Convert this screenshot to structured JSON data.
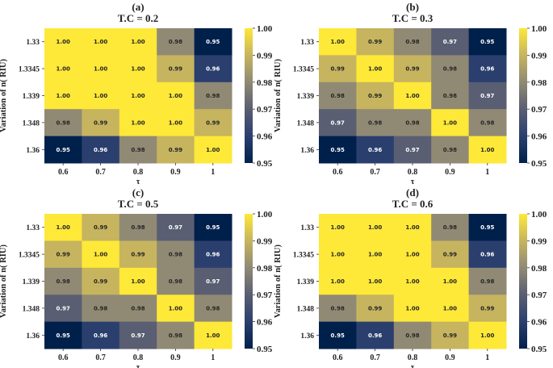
{
  "colormap": {
    "name": "cividis",
    "low": "#00204c",
    "mid": "#7c7b78",
    "high": "#fee838"
  },
  "axis_labels": {
    "x": "τ",
    "y": "Variation of n( RIU)"
  },
  "chart_data": [
    {
      "type": "heatmap",
      "panel": "(a)",
      "title": "T.C = 0.2",
      "xlabel": "τ",
      "ylabel": "Variation of n( RIU)",
      "x": [
        "0.6",
        "0.7",
        "0.8",
        "0.9",
        "1"
      ],
      "y": [
        "1.33",
        "1.3345",
        "1.339",
        "1.348",
        "1.36"
      ],
      "values": [
        [
          1.0,
          1.0,
          1.0,
          0.98,
          0.95
        ],
        [
          1.0,
          1.0,
          1.0,
          0.99,
          0.96
        ],
        [
          1.0,
          1.0,
          1.0,
          1.0,
          0.98
        ],
        [
          0.98,
          0.99,
          1.0,
          1.0,
          0.99
        ],
        [
          0.95,
          0.96,
          0.98,
          0.99,
          1.0
        ]
      ],
      "colorbar": {
        "range": [
          0.95,
          1.0
        ],
        "ticks": [
          "0.95",
          "0.96",
          "0.97",
          "0.98",
          "0.99",
          "1.00"
        ]
      }
    },
    {
      "type": "heatmap",
      "panel": "(b)",
      "title": "T.C = 0.3",
      "xlabel": "τ",
      "ylabel": "Variation of n( RIU)",
      "x": [
        "0.6",
        "0.7",
        "0.8",
        "0.9",
        "1"
      ],
      "y": [
        "1.33",
        "1.3345",
        "1.339",
        "1.348",
        "1.36"
      ],
      "values": [
        [
          1.0,
          0.99,
          0.98,
          0.97,
          0.95
        ],
        [
          0.99,
          1.0,
          0.99,
          0.98,
          0.96
        ],
        [
          0.98,
          0.99,
          1.0,
          0.98,
          0.97
        ],
        [
          0.97,
          0.98,
          0.98,
          1.0,
          0.98
        ],
        [
          0.95,
          0.96,
          0.97,
          0.98,
          1.0
        ]
      ],
      "colorbar": {
        "range": [
          0.95,
          1.0
        ],
        "ticks": [
          "0.95",
          "0.96",
          "0.97",
          "0.98",
          "0.99",
          "1.00"
        ]
      }
    },
    {
      "type": "heatmap",
      "panel": "(c)",
      "title": "T.C = 0.5",
      "xlabel": "τ",
      "ylabel": "Variation of n( RIU)",
      "x": [
        "0.6",
        "0.7",
        "0.8",
        "0.9",
        "1"
      ],
      "y": [
        "1.33",
        "1.3345",
        "1.339",
        "1.348",
        "1.36"
      ],
      "values": [
        [
          1.0,
          0.99,
          0.98,
          0.97,
          0.95
        ],
        [
          0.99,
          1.0,
          0.99,
          0.98,
          0.96
        ],
        [
          0.98,
          0.99,
          1.0,
          0.98,
          0.97
        ],
        [
          0.97,
          0.98,
          0.98,
          1.0,
          0.98
        ],
        [
          0.95,
          0.96,
          0.97,
          0.98,
          1.0
        ]
      ],
      "colorbar": {
        "range": [
          0.95,
          1.0
        ],
        "ticks": [
          "0.95",
          "0.96",
          "0.97",
          "0.98",
          "0.99",
          "1.00"
        ]
      }
    },
    {
      "type": "heatmap",
      "panel": "(d)",
      "title": "T.C = 0.6",
      "xlabel": "τ",
      "ylabel": "Variation of n( RIU)",
      "x": [
        "0.6",
        "0.7",
        "0.8",
        "0.9",
        "1"
      ],
      "y": [
        "1.33",
        "1.3345",
        "1.339",
        "1.348",
        "1.36"
      ],
      "values": [
        [
          1.0,
          1.0,
          1.0,
          0.98,
          0.95
        ],
        [
          1.0,
          1.0,
          1.0,
          0.99,
          0.96
        ],
        [
          1.0,
          1.0,
          1.0,
          1.0,
          0.98
        ],
        [
          0.98,
          0.99,
          1.0,
          1.0,
          0.99
        ],
        [
          0.95,
          0.96,
          0.98,
          0.99,
          1.0
        ]
      ],
      "colorbar": {
        "range": [
          0.95,
          1.0
        ],
        "ticks": [
          "0.95",
          "0.96",
          "0.97",
          "0.98",
          "0.99",
          "1.00"
        ]
      }
    }
  ]
}
